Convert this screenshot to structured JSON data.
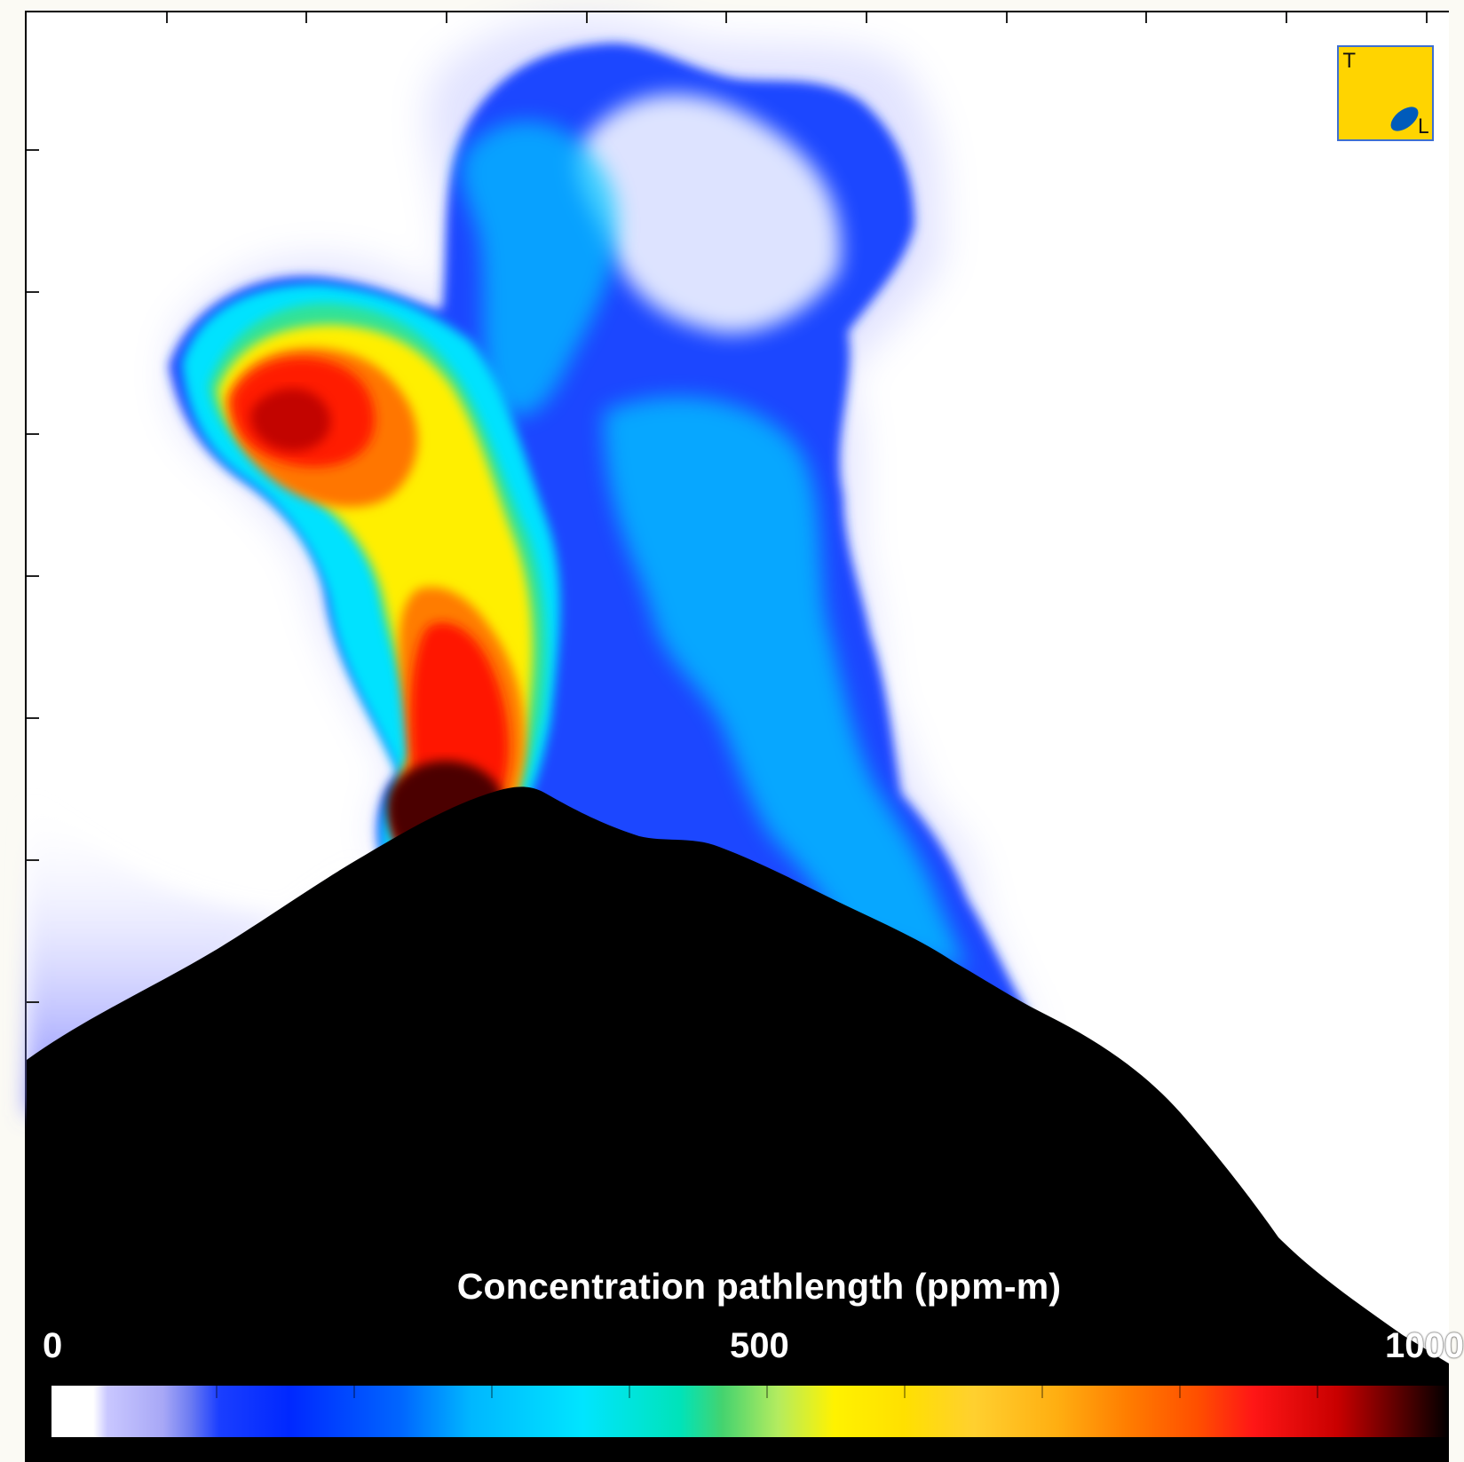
{
  "image": {
    "description_label": "Volcanic SO2 plume image",
    "colors": {
      "mountain": "#000000",
      "sky": "#ffffff",
      "plume_low": "#1f49ff",
      "plume_mid": "#00e7ff",
      "plume_high": "#ffee00",
      "plume_peak": "#ff1a00",
      "inset_background": "#ffd400",
      "inset_border": "#3e6fd1",
      "inset_lens": "#005bbb"
    }
  },
  "inset": {
    "top_label": "T",
    "bottom_label": "L"
  },
  "colorbar": {
    "title": "Concentration pathlength (ppm-m)",
    "min_label": "0",
    "mid_label": "500",
    "max_label": "1000",
    "range": [
      0,
      1000
    ]
  }
}
